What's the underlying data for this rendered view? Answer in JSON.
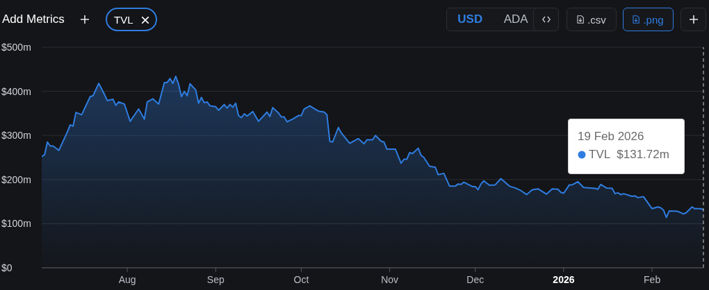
{
  "chart_data": {
    "type": "area",
    "x": [
      "2025-07-02",
      "2025-07-03",
      "2025-07-04",
      "2025-07-05",
      "2025-07-06",
      "2025-07-08",
      "2025-07-11",
      "2025-07-12",
      "2025-07-13",
      "2025-07-14",
      "2025-07-16",
      "2025-07-19",
      "2025-07-20",
      "2025-07-22",
      "2025-07-24",
      "2025-07-25",
      "2025-07-27",
      "2025-07-28",
      "2025-07-29",
      "2025-07-31",
      "2025-08-02",
      "2025-08-05",
      "2025-08-07",
      "2025-08-08",
      "2025-08-10",
      "2025-08-12",
      "2025-08-14",
      "2025-08-15",
      "2025-08-16",
      "2025-08-17",
      "2025-08-18",
      "2025-08-19",
      "2025-08-20",
      "2025-08-21",
      "2025-08-22",
      "2025-08-23",
      "2025-08-25",
      "2025-08-26",
      "2025-08-27",
      "2025-08-28",
      "2025-08-29",
      "2025-08-30",
      "2025-09-01",
      "2025-09-02",
      "2025-09-04",
      "2025-09-05",
      "2025-09-06",
      "2025-09-07",
      "2025-09-08",
      "2025-09-09",
      "2025-09-10",
      "2025-09-11",
      "2025-09-12",
      "2025-09-14",
      "2025-09-16",
      "2025-09-19",
      "2025-09-20",
      "2025-09-21",
      "2025-09-23",
      "2025-09-24",
      "2025-09-25",
      "2025-09-26",
      "2025-09-28",
      "2025-09-30",
      "2025-10-01",
      "2025-10-02",
      "2025-10-04",
      "2025-10-06",
      "2025-10-07",
      "2025-10-09",
      "2025-10-10",
      "2025-10-11",
      "2025-10-12",
      "2025-10-14",
      "2025-10-15",
      "2025-10-18",
      "2025-10-21",
      "2025-10-23",
      "2025-10-24",
      "2025-10-26",
      "2025-10-27",
      "2025-10-29",
      "2025-10-30",
      "2025-10-31",
      "2025-11-03",
      "2025-11-05",
      "2025-11-06",
      "2025-11-07",
      "2025-11-08",
      "2025-11-09",
      "2025-11-11",
      "2025-11-12",
      "2025-11-13",
      "2025-11-15",
      "2025-11-17",
      "2025-11-18",
      "2025-11-20",
      "2025-11-22",
      "2025-11-24",
      "2025-11-25",
      "2025-11-26",
      "2025-11-27",
      "2025-11-30",
      "2025-12-01",
      "2025-12-02",
      "2025-12-03",
      "2025-12-04",
      "2025-12-06",
      "2025-12-08",
      "2025-12-10",
      "2025-12-13",
      "2025-12-15",
      "2025-12-17",
      "2025-12-19",
      "2025-12-21",
      "2025-12-23",
      "2025-12-26",
      "2025-12-28",
      "2025-12-30",
      "2025-12-31",
      "2026-01-01",
      "2026-01-03",
      "2026-01-04",
      "2026-01-06",
      "2026-01-08",
      "2026-01-12",
      "2026-01-13",
      "2026-01-14",
      "2026-01-16",
      "2026-01-18",
      "2026-01-19",
      "2026-01-20",
      "2026-01-21",
      "2026-01-22",
      "2026-01-25",
      "2026-01-26",
      "2026-01-27",
      "2026-01-29",
      "2026-01-31",
      "2026-02-01",
      "2026-02-03",
      "2026-02-04",
      "2026-02-05",
      "2026-02-06",
      "2026-02-07",
      "2026-02-10",
      "2026-02-12",
      "2026-02-13",
      "2026-02-15",
      "2026-02-16",
      "2026-02-18",
      "2026-02-19"
    ],
    "series": [
      {
        "color": "#2f7de1",
        "values": [
          252,
          256,
          285,
          276,
          276,
          266,
          308,
          324,
          321,
          352,
          347,
          388,
          390,
          418,
          393,
          379,
          382,
          368,
          376,
          371,
          332,
          360,
          337,
          376,
          383,
          371,
          420,
          420,
          429,
          418,
          434,
          416,
          388,
          400,
          390,
          417,
          403,
          373,
          386,
          374,
          376,
          367,
          365,
          357,
          370,
          362,
          370,
          364,
          373,
          345,
          340,
          349,
          344,
          354,
          332,
          353,
          343,
          363,
          351,
          342,
          342,
          331,
          337,
          345,
          345,
          360,
          367,
          359,
          355,
          353,
          347,
          287,
          285,
          318,
          306,
          282,
          293,
          281,
          290,
          290,
          300,
          287,
          285,
          269,
          269,
          237,
          246,
          246,
          261,
          259,
          271,
          255,
          250,
          230,
          228,
          211,
          214,
          185,
          185,
          190,
          189,
          194,
          184,
          184,
          177,
          190,
          197,
          187,
          188,
          202,
          185,
          181,
          175,
          166,
          177,
          179,
          167,
          179,
          178,
          171,
          169,
          188,
          188,
          195,
          182,
          180,
          178,
          189,
          181,
          180,
          168,
          170,
          166,
          168,
          162,
          163,
          159,
          161,
          143,
          134,
          138,
          136,
          131,
          114,
          129,
          128,
          122,
          125,
          138,
          134,
          134,
          131.72
        ]
      }
    ],
    "xlim": [
      "2025-07-02",
      "2026-02-19"
    ],
    "xticks": [
      {
        "value": "2025-08-01",
        "label": "Aug"
      },
      {
        "value": "2025-09-01",
        "label": "Sep"
      },
      {
        "value": "2025-10-01",
        "label": "Oct"
      },
      {
        "value": "2025-11-01",
        "label": "Nov"
      },
      {
        "value": "2025-12-01",
        "label": "Dec"
      },
      {
        "value": "2026-01-01",
        "label": "2026"
      },
      {
        "value": "2026-02-01",
        "label": "Feb"
      }
    ],
    "ylim": [
      0,
      500
    ],
    "yticks": [
      {
        "value": 0,
        "label": "$0"
      },
      {
        "value": 100,
        "label": "$100m"
      },
      {
        "value": 200,
        "label": "$200m"
      },
      {
        "value": 300,
        "label": "$300m"
      },
      {
        "value": 400,
        "label": "$400m"
      },
      {
        "value": 500,
        "label": "$500m"
      }
    ],
    "grid": "y",
    "marker": "none",
    "line_style": "solid",
    "legend": false,
    "ref_lines": [
      {
        "axis": "x",
        "value": "2026-02-19",
        "line_style": "dashed",
        "color": "#cccccc"
      }
    ],
    "annotations": [
      "Add Metrics",
      "TVL",
      "USD",
      "ADA",
      ".csv",
      ".png",
      "19 Feb 2026",
      "TVL $131.72m"
    ]
  }
}
